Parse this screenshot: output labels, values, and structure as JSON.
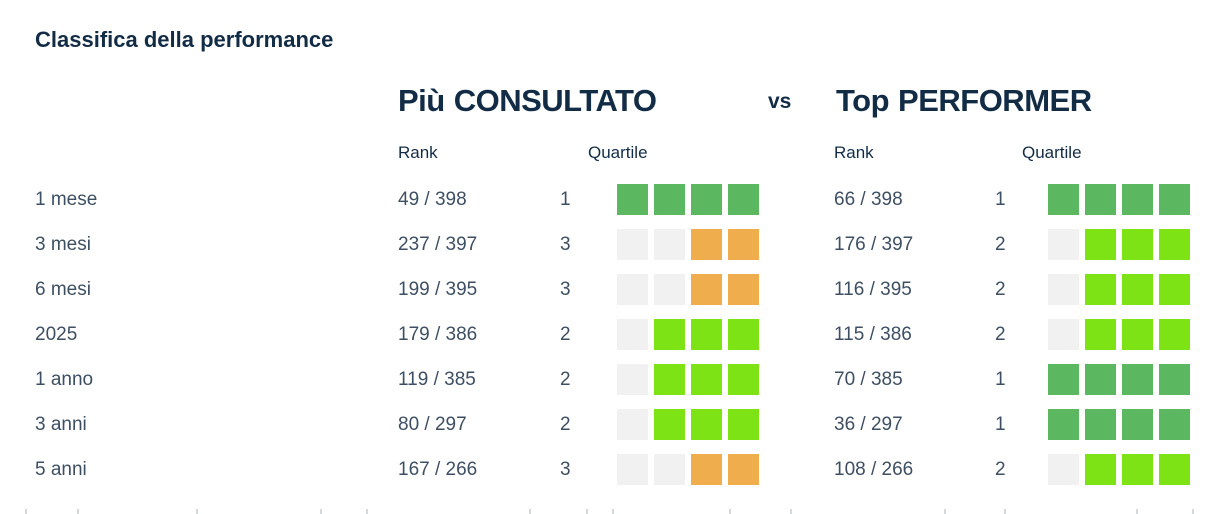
{
  "title": "Classifica della performance",
  "header": {
    "left": {
      "prefix": "Più",
      "name": "CONSULTATO"
    },
    "vs": "vs",
    "right": {
      "prefix": "Top",
      "name": "PERFORMER"
    }
  },
  "columns": {
    "rank": "Rank",
    "quartile": "Quartile"
  },
  "colors": {
    "heading": "#132c46",
    "text": "#3e4f63",
    "q1": "#5cb860",
    "q2": "#7de314",
    "q3": "#f0ad4e",
    "empty": "#f1f1f1"
  },
  "rows": [
    {
      "label": "1 mese",
      "left": {
        "rank": "49 / 398",
        "quartile": 1,
        "cells": [
          "q1",
          "q1",
          "q1",
          "q1"
        ]
      },
      "right": {
        "rank": "66 / 398",
        "quartile": 1,
        "cells": [
          "q1",
          "q1",
          "q1",
          "q1"
        ]
      }
    },
    {
      "label": "3 mesi",
      "left": {
        "rank": "237 / 397",
        "quartile": 3,
        "cells": [
          "empty",
          "empty",
          "q3",
          "q3"
        ]
      },
      "right": {
        "rank": "176 / 397",
        "quartile": 2,
        "cells": [
          "empty",
          "q2",
          "q2",
          "q2"
        ]
      }
    },
    {
      "label": "6 mesi",
      "left": {
        "rank": "199 / 395",
        "quartile": 3,
        "cells": [
          "empty",
          "empty",
          "q3",
          "q3"
        ]
      },
      "right": {
        "rank": "116 / 395",
        "quartile": 2,
        "cells": [
          "empty",
          "q2",
          "q2",
          "q2"
        ]
      }
    },
    {
      "label": "2025",
      "left": {
        "rank": "179 / 386",
        "quartile": 2,
        "cells": [
          "empty",
          "q2",
          "q2",
          "q2"
        ]
      },
      "right": {
        "rank": "115 / 386",
        "quartile": 2,
        "cells": [
          "empty",
          "q2",
          "q2",
          "q2"
        ]
      }
    },
    {
      "label": "1 anno",
      "left": {
        "rank": "119 / 385",
        "quartile": 2,
        "cells": [
          "empty",
          "q2",
          "q2",
          "q2"
        ]
      },
      "right": {
        "rank": "70 / 385",
        "quartile": 1,
        "cells": [
          "q1",
          "q1",
          "q1",
          "q1"
        ]
      }
    },
    {
      "label": "3 anni",
      "left": {
        "rank": "80 / 297",
        "quartile": 2,
        "cells": [
          "empty",
          "q2",
          "q2",
          "q2"
        ]
      },
      "right": {
        "rank": "36 / 297",
        "quartile": 1,
        "cells": [
          "q1",
          "q1",
          "q1",
          "q1"
        ]
      }
    },
    {
      "label": "5 anni",
      "left": {
        "rank": "167 / 266",
        "quartile": 3,
        "cells": [
          "empty",
          "empty",
          "q3",
          "q3"
        ]
      },
      "right": {
        "rank": "108 / 266",
        "quartile": 2,
        "cells": [
          "empty",
          "q2",
          "q2",
          "q2"
        ]
      }
    }
  ],
  "chart_data": {
    "type": "table",
    "title": "Classifica della performance",
    "groups": [
      "Più CONSULTATO",
      "Top PERFORMER"
    ],
    "columns": [
      "Rank",
      "Quartile"
    ],
    "categories": [
      "1 mese",
      "3 mesi",
      "6 mesi",
      "2025",
      "1 anno",
      "3 anni",
      "5 anni"
    ],
    "series": [
      {
        "name": "Più CONSULTATO",
        "rank": [
          "49 / 398",
          "237 / 397",
          "199 / 395",
          "179 / 386",
          "119 / 385",
          "80 / 297",
          "167 / 266"
        ],
        "quartile": [
          1,
          3,
          3,
          2,
          2,
          2,
          3
        ]
      },
      {
        "name": "Top PERFORMER",
        "rank": [
          "66 / 398",
          "176 / 397",
          "116 / 395",
          "115 / 386",
          "70 / 385",
          "36 / 297",
          "108 / 266"
        ],
        "quartile": [
          1,
          2,
          2,
          2,
          1,
          1,
          2
        ]
      }
    ],
    "quartile_legend": {
      "filled_squares_rule": "quartile 1 = 4 filled, quartile 2 = 3 filled, quartile 3 = 2 filled (of 4)",
      "quartile1_color": "#5cb860",
      "quartile2_color": "#7de314",
      "quartile3_color": "#f0ad4e",
      "empty_color": "#f1f1f1"
    }
  }
}
